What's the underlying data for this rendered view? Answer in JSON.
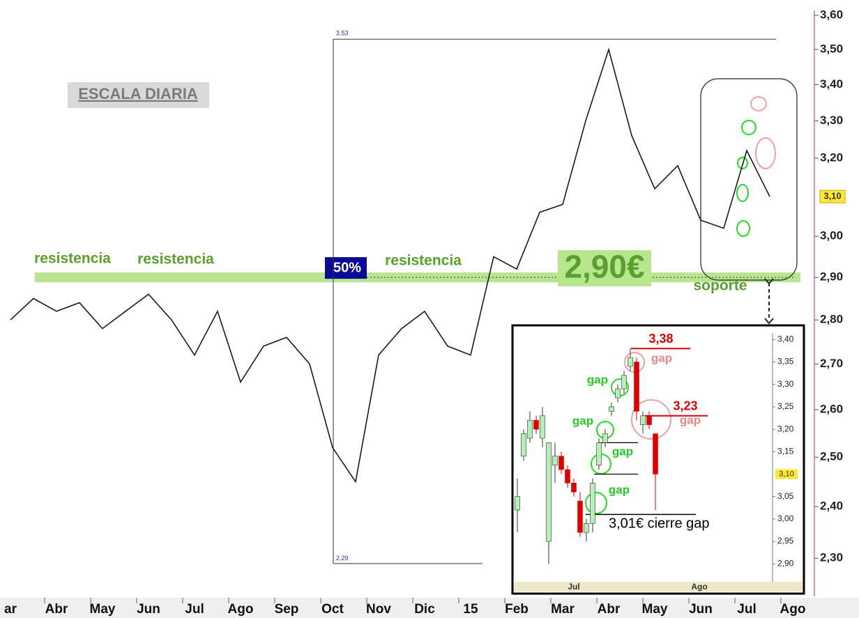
{
  "chart_data": [
    {
      "type": "line",
      "categories": [
        "ar",
        null,
        "Abr",
        null,
        "May",
        null,
        "Jun",
        null,
        "Jul",
        null,
        "Ago",
        null,
        "Sep",
        null,
        "Oct",
        null,
        "Nov",
        null,
        "Dic",
        null,
        "15",
        null,
        "Feb",
        null,
        "Mar",
        null,
        "Abr",
        null,
        "May",
        null,
        "Jun",
        null,
        "Jul",
        null,
        "Ago",
        null
      ],
      "series": [
        {
          "color": "#1a1a1a",
          "values": [
            2.8,
            2.85,
            2.82,
            2.84,
            2.78,
            2.82,
            2.86,
            2.8,
            2.72,
            2.82,
            2.66,
            2.74,
            2.76,
            2.7,
            2.52,
            2.45,
            2.72,
            2.78,
            2.82,
            2.74,
            2.72,
            2.95,
            2.92,
            3.06,
            3.08,
            3.3,
            3.5,
            3.26,
            3.12,
            3.18,
            3.04,
            3.02,
            3.22,
            3.1,
            null,
            null
          ]
        }
      ],
      "ylim": [
        2.23,
        3.646
      ],
      "log_scale": true,
      "yticks": [
        {
          "value": 3.6,
          "label": "3,60"
        },
        {
          "value": 3.5,
          "label": "3,50"
        },
        {
          "value": 3.4,
          "label": "3,40"
        },
        {
          "value": 3.3,
          "label": "3,30"
        },
        {
          "value": 3.2,
          "label": "3,20"
        },
        {
          "value": 3.0,
          "label": "3,00"
        },
        {
          "value": 2.9,
          "label": "2,90"
        },
        {
          "value": 2.8,
          "label": "2,80"
        },
        {
          "value": 2.7,
          "label": "2,70"
        },
        {
          "value": 2.6,
          "label": "2,60"
        },
        {
          "value": 2.5,
          "label": "2,50"
        },
        {
          "value": 2.4,
          "label": "2,40"
        },
        {
          "value": 2.3,
          "label": "2,30"
        }
      ],
      "current_price": {
        "value": 3.1,
        "label": "3,10"
      },
      "support": {
        "value": 2.9,
        "label": "2,90€",
        "color": "#b8e68f"
      },
      "fib_levels": [
        3.53,
        2.29
      ],
      "annotations": [
        "ESCALA DIARIA",
        "resistencia",
        "resistencia",
        "resistencia",
        "50%",
        "soporte"
      ]
    },
    {
      "type": "candlestick",
      "categories": [
        null,
        null,
        null,
        null,
        null,
        null,
        null,
        null,
        null,
        "Jul",
        null,
        null,
        null,
        null,
        null,
        null,
        null,
        null,
        null,
        null,
        null,
        null,
        null,
        null,
        null,
        null,
        null,
        null,
        null,
        "Ago",
        null,
        null
      ],
      "open": [
        3.02,
        3.14,
        3.18,
        3.22,
        3.18,
        2.95,
        3.12,
        3.14,
        3.11,
        3.08,
        3.04,
        2.97,
        2.99,
        3.12,
        3.17,
        3.24,
        3.27,
        3.29,
        3.34,
        3.35,
        3.21,
        3.23,
        3.19,
        null,
        null,
        null,
        null,
        null,
        null,
        null,
        null,
        null
      ],
      "high": [
        3.09,
        3.2,
        3.24,
        3.23,
        3.25,
        3.17,
        3.17,
        3.15,
        3.12,
        3.09,
        3.06,
        3.0,
        3.09,
        3.18,
        3.2,
        3.26,
        3.3,
        3.33,
        3.38,
        3.36,
        3.24,
        3.24,
        3.19,
        null,
        null,
        null,
        null,
        null,
        null,
        null,
        null,
        null
      ],
      "low": [
        2.97,
        3.13,
        3.17,
        3.19,
        3.16,
        2.9,
        3.08,
        3.1,
        3.07,
        3.05,
        2.96,
        2.95,
        2.97,
        3.11,
        3.16,
        3.23,
        3.26,
        3.28,
        3.33,
        3.22,
        3.19,
        3.2,
        3.02,
        null,
        null,
        null,
        null,
        null,
        null,
        null,
        null,
        null
      ],
      "close": [
        3.05,
        3.19,
        3.22,
        3.2,
        3.23,
        3.17,
        3.14,
        3.11,
        3.08,
        3.06,
        2.97,
        2.99,
        3.08,
        3.17,
        3.19,
        3.25,
        3.29,
        3.32,
        3.36,
        3.24,
        3.23,
        3.21,
        3.1,
        null,
        null,
        null,
        null,
        null,
        null,
        null,
        null,
        null
      ],
      "up_color": "#b4f0b4",
      "down_color": "#e00000",
      "ylim": [
        2.86,
        3.43
      ],
      "yticks": [
        {
          "value": 3.4,
          "label": "3,40"
        },
        {
          "value": 3.35,
          "label": "3,35"
        },
        {
          "value": 3.3,
          "label": "3,30"
        },
        {
          "value": 3.25,
          "label": "3,25"
        },
        {
          "value": 3.2,
          "label": "3,20"
        },
        {
          "value": 3.15,
          "label": "3,15"
        },
        {
          "value": 3.05,
          "label": "3,05"
        },
        {
          "value": 3.0,
          "label": "3,00"
        },
        {
          "value": 2.95,
          "label": "2,95"
        },
        {
          "value": 2.9,
          "label": "2,90"
        }
      ],
      "current_price": {
        "value": 3.1,
        "label": "3,10"
      },
      "gap_levels": [
        {
          "value": 3.38,
          "label": "3,38"
        },
        {
          "value": 3.23,
          "label": "3,23"
        }
      ],
      "level_lines": [
        3.17,
        3.1
      ],
      "close_gap": {
        "value": 3.01,
        "label": "3,01€ cierre gap"
      },
      "annotations": [
        "gap",
        "gap",
        "gap",
        "gap",
        "gap",
        "gap"
      ]
    }
  ]
}
